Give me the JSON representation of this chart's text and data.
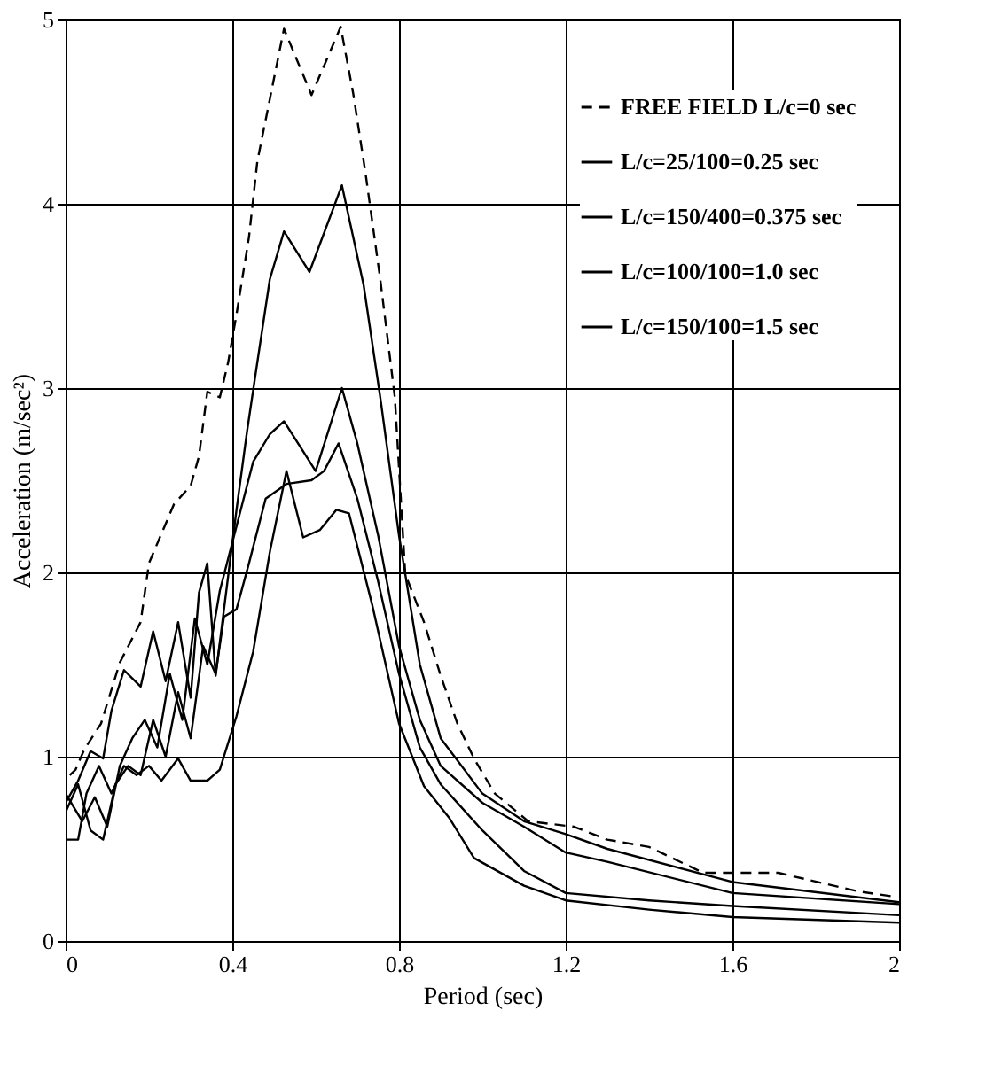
{
  "chart_data": {
    "type": "line",
    "xlabel": "Period (sec)",
    "ylabel": "Acceleration (m/sec²)",
    "xlim": [
      0,
      2
    ],
    "ylim": [
      0,
      5
    ],
    "xticks": [
      0,
      0.4,
      0.8,
      1.2,
      1.6,
      2
    ],
    "yticks": [
      0,
      1,
      2,
      3,
      4,
      5
    ],
    "grid": true,
    "legend": "right",
    "marker": "none",
    "series": [
      {
        "name": "FREE FIELD L/c=0 sec",
        "color": "#000000",
        "line_style": "dashed",
        "x": [
          0.01,
          0.024,
          0.045,
          0.085,
          0.13,
          0.18,
          0.2,
          0.26,
          0.3,
          0.32,
          0.34,
          0.37,
          0.39,
          0.41,
          0.44,
          0.46,
          0.524,
          0.59,
          0.66,
          0.69,
          0.72,
          0.755,
          0.79,
          0.815,
          0.86,
          0.9,
          0.94,
          0.98,
          1.03,
          1.11,
          1.22,
          1.3,
          1.4,
          1.53,
          1.71,
          1.9,
          1.99
        ],
        "values": [
          0.9,
          0.93,
          1.04,
          1.18,
          1.51,
          1.73,
          2.05,
          2.37,
          2.47,
          2.63,
          2.98,
          2.95,
          3.14,
          3.4,
          3.82,
          4.23,
          4.95,
          4.59,
          4.96,
          4.6,
          4.16,
          3.59,
          2.95,
          1.99,
          1.73,
          1.44,
          1.18,
          0.99,
          0.8,
          0.65,
          0.62,
          0.55,
          0.51,
          0.37,
          0.37,
          0.27,
          0.24
        ]
      },
      {
        "name": "L/c=25/100=0.25 sec",
        "color": "#000000",
        "line_style": "solid",
        "x": [
          0.0,
          0.03,
          0.06,
          0.09,
          0.11,
          0.14,
          0.18,
          0.21,
          0.24,
          0.27,
          0.3,
          0.32,
          0.34,
          0.36,
          0.41,
          0.435,
          0.46,
          0.49,
          0.524,
          0.585,
          0.663,
          0.715,
          0.755,
          0.8,
          0.85,
          0.9,
          1.0,
          1.1,
          1.2,
          1.3,
          1.6,
          2.0
        ],
        "values": [
          0.75,
          0.87,
          1.03,
          0.99,
          1.25,
          1.47,
          1.38,
          1.68,
          1.41,
          1.73,
          1.32,
          1.89,
          2.05,
          1.44,
          2.34,
          2.76,
          3.14,
          3.59,
          3.85,
          3.63,
          4.1,
          3.56,
          2.95,
          2.2,
          1.5,
          1.1,
          0.8,
          0.65,
          0.58,
          0.5,
          0.32,
          0.21
        ]
      },
      {
        "name": "L/c=150/400=0.375 sec",
        "color": "#000000",
        "line_style": "solid",
        "x": [
          0.0,
          0.04,
          0.07,
          0.1,
          0.13,
          0.16,
          0.19,
          0.22,
          0.25,
          0.28,
          0.31,
          0.34,
          0.37,
          0.41,
          0.45,
          0.49,
          0.524,
          0.6,
          0.663,
          0.7,
          0.75,
          0.8,
          0.85,
          0.9,
          1.0,
          1.1,
          1.2,
          1.3,
          1.6,
          2.0
        ],
        "values": [
          0.8,
          0.65,
          0.78,
          0.62,
          0.95,
          1.1,
          1.2,
          1.05,
          1.45,
          1.2,
          1.75,
          1.5,
          1.9,
          2.25,
          2.6,
          2.75,
          2.82,
          2.55,
          3.0,
          2.7,
          2.2,
          1.6,
          1.2,
          0.95,
          0.75,
          0.62,
          0.48,
          0.43,
          0.26,
          0.2
        ]
      },
      {
        "name": "L/c=100/100=1.0 sec",
        "color": "#000000",
        "line_style": "solid",
        "x": [
          0.0,
          0.03,
          0.06,
          0.09,
          0.12,
          0.15,
          0.18,
          0.21,
          0.24,
          0.27,
          0.3,
          0.33,
          0.36,
          0.38,
          0.41,
          0.44,
          0.48,
          0.53,
          0.59,
          0.62,
          0.655,
          0.7,
          0.75,
          0.8,
          0.85,
          0.9,
          1.0,
          1.1,
          1.2,
          1.4,
          1.6,
          2.0
        ],
        "values": [
          0.7,
          0.85,
          0.6,
          0.55,
          0.85,
          0.95,
          0.9,
          1.2,
          1.0,
          1.35,
          1.1,
          1.6,
          1.45,
          1.76,
          1.8,
          2.05,
          2.4,
          2.48,
          2.5,
          2.55,
          2.7,
          2.4,
          1.95,
          1.45,
          1.05,
          0.85,
          0.6,
          0.38,
          0.26,
          0.22,
          0.19,
          0.14
        ]
      },
      {
        "name": "L/c=150/100=1.5 sec",
        "color": "#000000",
        "line_style": "solid",
        "x": [
          0.0,
          0.03,
          0.05,
          0.08,
          0.11,
          0.14,
          0.17,
          0.2,
          0.23,
          0.27,
          0.3,
          0.34,
          0.37,
          0.41,
          0.45,
          0.49,
          0.53,
          0.57,
          0.61,
          0.65,
          0.68,
          0.735,
          0.8,
          0.86,
          0.92,
          0.98,
          1.1,
          1.2,
          1.4,
          1.6,
          2.0
        ],
        "values": [
          0.55,
          0.55,
          0.8,
          0.95,
          0.8,
          0.95,
          0.9,
          0.95,
          0.87,
          0.99,
          0.87,
          0.87,
          0.93,
          1.22,
          1.57,
          2.11,
          2.55,
          2.19,
          2.23,
          2.34,
          2.32,
          1.83,
          1.18,
          0.84,
          0.67,
          0.45,
          0.3,
          0.22,
          0.17,
          0.13,
          0.1
        ]
      }
    ]
  }
}
